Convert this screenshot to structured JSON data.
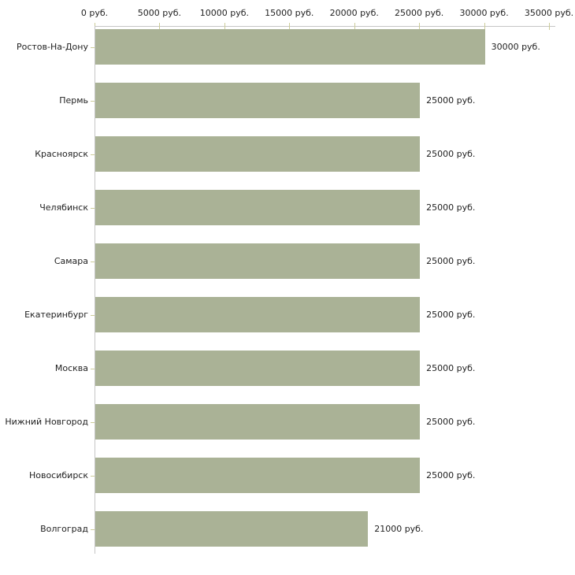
{
  "chart_data": {
    "type": "bar",
    "orientation": "horizontal",
    "title": "",
    "xlabel": "",
    "ylabel": "",
    "unit": "руб.",
    "xlim": [
      0,
      35000
    ],
    "grid": false,
    "legend": "none",
    "categories": [
      "Ростов-На-Дону",
      "Пермь",
      "Красноярск",
      "Челябинск",
      "Самара",
      "Екатеринбург",
      "Москва",
      "Нижний Новгород",
      "Новосибирск",
      "Волгоград"
    ],
    "values": [
      30000,
      25000,
      25000,
      25000,
      25000,
      25000,
      25000,
      25000,
      25000,
      21000
    ],
    "value_labels": [
      "30000 руб.",
      "25000 руб.",
      "25000 руб.",
      "25000 руб.",
      "25000 руб.",
      "25000 руб.",
      "25000 руб.",
      "25000 руб.",
      "25000 руб.",
      "21000 руб."
    ],
    "x_ticks": [
      0,
      5000,
      10000,
      15000,
      20000,
      25000,
      30000,
      35000
    ],
    "x_tick_labels": [
      "0 руб.",
      "5000 руб.",
      "10000 руб.",
      "15000 руб.",
      "20000 руб.",
      "25000 руб.",
      "30000 руб.",
      "35000 руб."
    ],
    "colors": {
      "bar": "#aab296",
      "axis": "#c6c6c6",
      "tick": "#cccc99",
      "text": "#222222",
      "background": "#ffffff"
    }
  }
}
